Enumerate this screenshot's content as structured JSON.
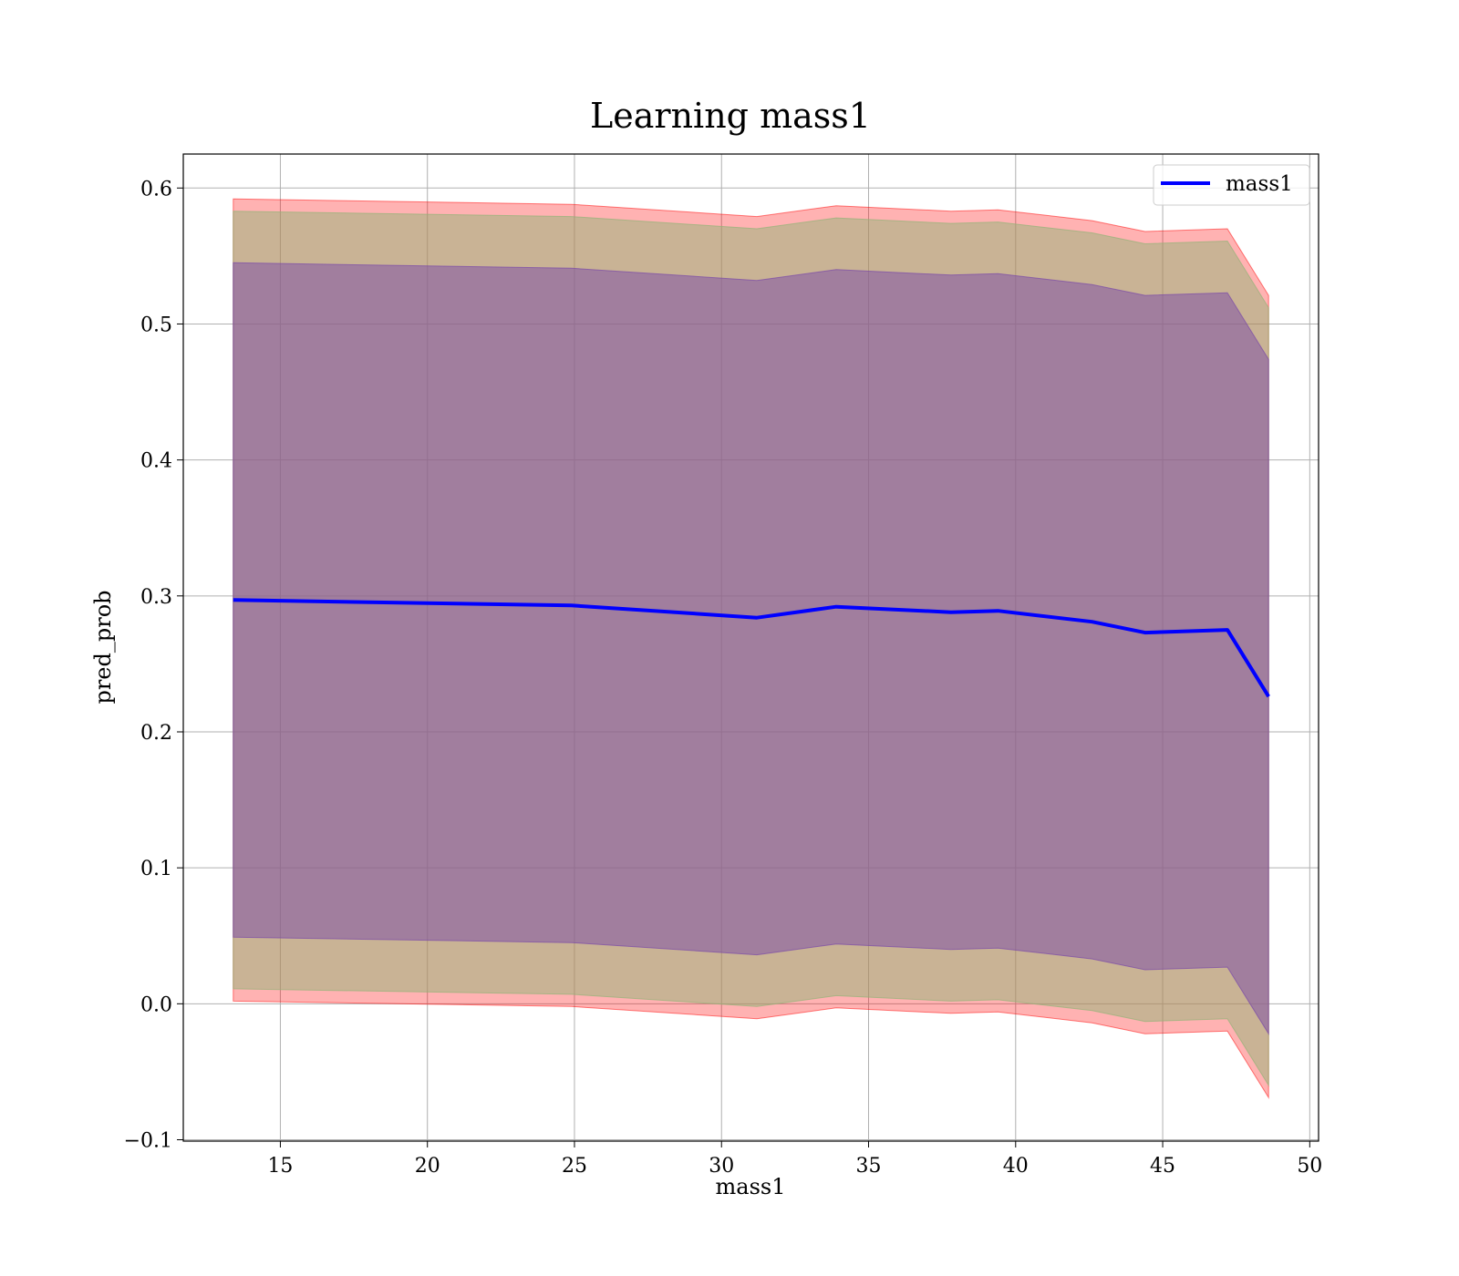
{
  "chart_data": {
    "type": "area",
    "title": "Learning mass1",
    "xlabel": "mass1",
    "ylabel": "pred_prob",
    "xlim": [
      11.7,
      50.3
    ],
    "ylim": [
      -0.101,
      0.625
    ],
    "xticks": [
      15,
      20,
      25,
      30,
      35,
      40,
      45,
      50
    ],
    "yticks": [
      -0.1,
      0.0,
      0.1,
      0.2,
      0.3,
      0.4,
      0.5,
      0.6
    ],
    "ytick_labels": [
      "−0.1",
      "0.0",
      "0.1",
      "0.2",
      "0.3",
      "0.4",
      "0.5",
      "0.6"
    ],
    "grid": true,
    "legend": {
      "location": "upper right",
      "entries": [
        "mass1"
      ]
    },
    "x": [
      13.4,
      24.9,
      31.2,
      33.9,
      37.8,
      39.4,
      42.6,
      44.4,
      47.2,
      48.6
    ],
    "series": [
      {
        "name": "mass1",
        "color": "#0000ff",
        "values": [
          0.297,
          0.293,
          0.284,
          0.292,
          0.288,
          0.289,
          0.281,
          0.273,
          0.275,
          0.226
        ]
      }
    ],
    "bands": [
      {
        "color": "#ff0000",
        "opacity": 0.3,
        "upper": [
          0.592,
          0.588,
          0.579,
          0.587,
          0.583,
          0.584,
          0.576,
          0.568,
          0.57,
          0.521
        ],
        "lower": [
          0.002,
          -0.002,
          -0.011,
          -0.003,
          -0.007,
          -0.006,
          -0.014,
          -0.022,
          -0.02,
          -0.069
        ]
      },
      {
        "color": "#93b478",
        "opacity": 0.5,
        "upper": [
          0.583,
          0.579,
          0.57,
          0.578,
          0.574,
          0.575,
          0.567,
          0.559,
          0.561,
          0.512
        ],
        "lower": [
          0.011,
          0.007,
          -0.002,
          0.006,
          0.002,
          0.003,
          -0.005,
          -0.013,
          -0.011,
          -0.06
        ]
      },
      {
        "color": "#7a4aa8",
        "opacity": 0.5,
        "upper": [
          0.545,
          0.541,
          0.532,
          0.54,
          0.536,
          0.537,
          0.529,
          0.521,
          0.523,
          0.474
        ],
        "lower": [
          0.049,
          0.045,
          0.036,
          0.044,
          0.04,
          0.041,
          0.033,
          0.025,
          0.027,
          -0.022
        ]
      }
    ]
  }
}
